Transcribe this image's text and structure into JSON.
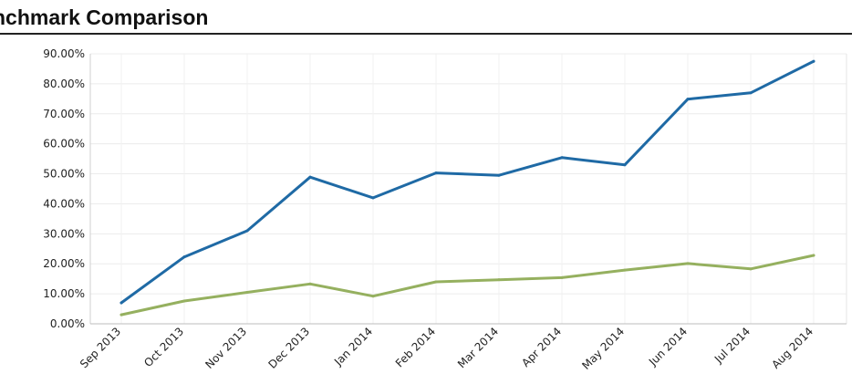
{
  "title": "nchmark Comparison",
  "chart_data": {
    "type": "line",
    "title": "nchmark Comparison",
    "xlabel": "",
    "ylabel": "",
    "categories": [
      "Sep 2013",
      "Oct 2013",
      "Nov 2013",
      "Dec 2013",
      "Jan 2014",
      "Feb 2014",
      "Mar 2014",
      "Apr 2014",
      "May 2014",
      "Jun 2014",
      "Jul 2014",
      "Aug 2014"
    ],
    "ylim": [
      0,
      90
    ],
    "yticks": [
      "0.00%",
      "10.00%",
      "20.00%",
      "30.00%",
      "40.00%",
      "50.00%",
      "60.00%",
      "70.00%",
      "80.00%",
      "90.00%"
    ],
    "grid": true,
    "series": [
      {
        "color": "#1f6aa5",
        "values": [
          7.0,
          22.3,
          31.0,
          48.9,
          42.0,
          50.3,
          49.5,
          55.4,
          53.0,
          74.9,
          77.0,
          87.5
        ]
      },
      {
        "color": "#95b05f",
        "values": [
          3.0,
          7.6,
          10.5,
          13.3,
          9.2,
          14.0,
          14.7,
          15.4,
          17.9,
          20.1,
          18.3,
          22.8
        ]
      }
    ]
  }
}
